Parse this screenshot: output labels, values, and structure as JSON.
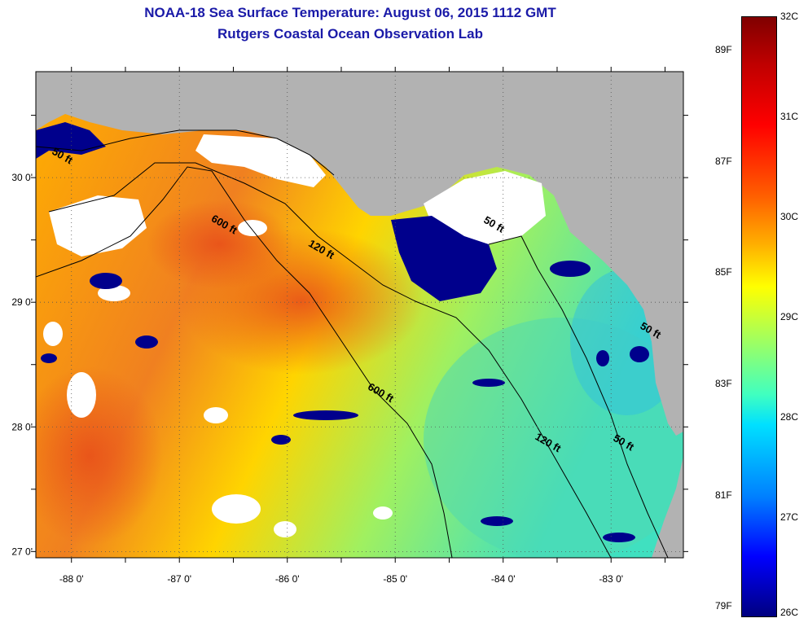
{
  "title": {
    "line1": "NOAA-18 Sea Surface Temperature:  August 06, 2015 1112 GMT",
    "line2": "Rutgers Coastal Ocean Observation Lab"
  },
  "colors": {
    "land": "#b2b2b2",
    "cloud": "#ffffff",
    "contour": "#000000",
    "title": "#1a1aa8"
  },
  "map": {
    "lon_range": [
      -88.33,
      -82.33
    ],
    "lat_range": [
      26.95,
      30.85
    ],
    "x_ticks": [
      {
        "value": -88,
        "label": "-88 0'"
      },
      {
        "value": -87,
        "label": "-87 0'"
      },
      {
        "value": -86,
        "label": "-86 0'"
      },
      {
        "value": -85,
        "label": "-85 0'"
      },
      {
        "value": -84,
        "label": "-84 0'"
      },
      {
        "value": -83,
        "label": "-83 0'"
      }
    ],
    "y_ticks": [
      {
        "value": 30,
        "label": "30 0'"
      },
      {
        "value": 29,
        "label": "29 0'"
      },
      {
        "value": 28,
        "label": "28 0'"
      },
      {
        "value": 27,
        "label": "27 0'"
      }
    ],
    "contour_labels": [
      {
        "text": "50 ft",
        "lon": -88.1,
        "lat": 30.15
      },
      {
        "text": "600 ft",
        "lon": -86.6,
        "lat": 29.6
      },
      {
        "text": "120 ft",
        "lon": -85.7,
        "lat": 29.4
      },
      {
        "text": "50 ft",
        "lon": -84.1,
        "lat": 29.6
      },
      {
        "text": "600 ft",
        "lon": -85.15,
        "lat": 28.25
      },
      {
        "text": "120 ft",
        "lon": -83.6,
        "lat": 27.85
      },
      {
        "text": "50 ft",
        "lon": -82.9,
        "lat": 27.85
      },
      {
        "text": "50 ft",
        "lon": -82.65,
        "lat": 28.75
      }
    ]
  },
  "colorbar": {
    "min_c": 26,
    "max_c": 32,
    "celsius_labels": [
      "32C",
      "31C",
      "30C",
      "29C",
      "28C",
      "27C",
      "26C"
    ],
    "fahrenheit_labels": [
      "89F",
      "87F",
      "85F",
      "83F",
      "81F",
      "79F"
    ]
  }
}
